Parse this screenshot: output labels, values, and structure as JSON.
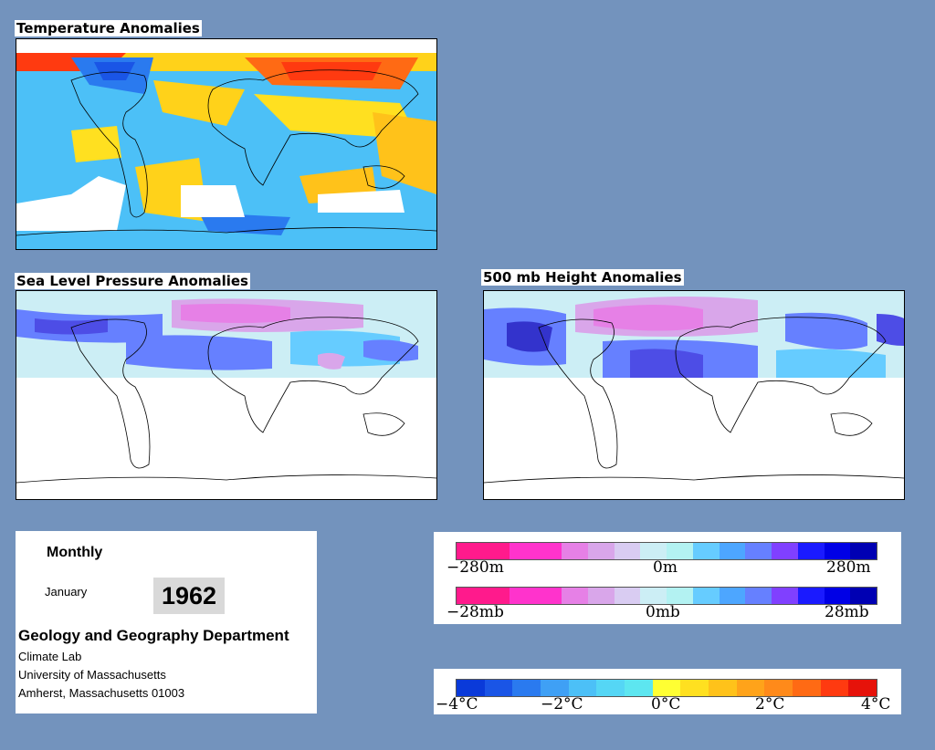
{
  "panels": {
    "temperature": {
      "title": "Temperature Anomalies"
    },
    "slp": {
      "title": "Sea Level Pressure Anomalies"
    },
    "height500": {
      "title": "500 mb Height Anomalies"
    }
  },
  "info": {
    "period": "Monthly",
    "month": "January",
    "year": "1962",
    "department": "Geology and Geography Department",
    "lab": "Climate Lab",
    "university": "University of Massachusetts",
    "address": "Amherst, Massachusetts 01003"
  },
  "legends": {
    "height": {
      "labels": [
        "−280m",
        "0m",
        "280m"
      ],
      "colors": [
        "#ff1a8c",
        "#ff1a8c",
        "#ff33cc",
        "#ff33cc",
        "#e680e6",
        "#d9a6ea",
        "#d9ccf2",
        "#cceef5",
        "#b3f2f2",
        "#66ccff",
        "#4da6ff",
        "#6680ff",
        "#8040ff",
        "#1a1aff",
        "#0000e6",
        "#0000b3"
      ]
    },
    "pressure": {
      "labels": [
        "−28mb",
        "0mb",
        "28mb"
      ],
      "colors": [
        "#ff1a8c",
        "#ff1a8c",
        "#ff33cc",
        "#ff33cc",
        "#e680e6",
        "#d9a6ea",
        "#d9ccf2",
        "#cceef5",
        "#b3f2f2",
        "#66ccff",
        "#4da6ff",
        "#6680ff",
        "#8040ff",
        "#1a1aff",
        "#0000e6",
        "#0000b3"
      ]
    },
    "temperature": {
      "labels": [
        "−4°C",
        "−2°C",
        "0°C",
        "2°C",
        "4°C"
      ],
      "colors": [
        "#0a3ad9",
        "#1a55e6",
        "#2a7aef",
        "#3fa0f5",
        "#4cc0f7",
        "#55d6f5",
        "#5de6f0",
        "#ffff33",
        "#ffe020",
        "#ffc21a",
        "#ffa31a",
        "#ff8a1a",
        "#ff6a14",
        "#ff3a10",
        "#e6120a"
      ]
    }
  }
}
